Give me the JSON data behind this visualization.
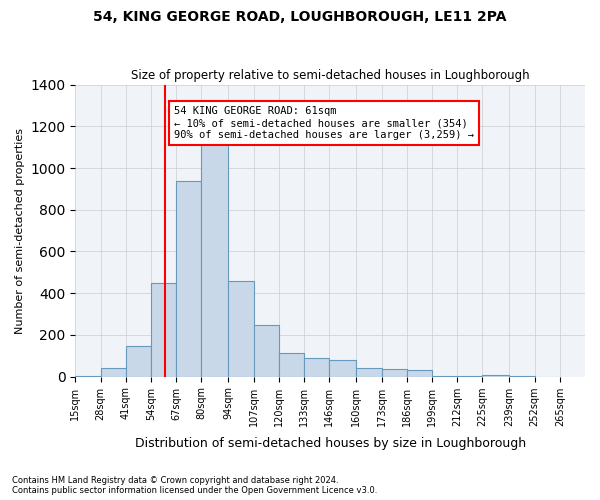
{
  "title1": "54, KING GEORGE ROAD, LOUGHBOROUGH, LE11 2PA",
  "title2": "Size of property relative to semi-detached houses in Loughborough",
  "xlabel": "Distribution of semi-detached houses by size in Loughborough",
  "ylabel": "Number of semi-detached properties",
  "footnote": "Contains HM Land Registry data © Crown copyright and database right 2024.\nContains public sector information licensed under the Open Government Licence v3.0.",
  "bar_color": "#c8d8e8",
  "bar_edge_color": "#6699bb",
  "grid_color": "#cccccc",
  "background_color": "#f0f4f8",
  "red_line_x": 61,
  "annotation_title": "54 KING GEORGE ROAD: 61sqm",
  "annotation_line1": "← 10% of semi-detached houses are smaller (354)",
  "annotation_line2": "90% of semi-detached houses are larger (3,259) →",
  "bin_edges": [
    15,
    28,
    41,
    54,
    67,
    80,
    94,
    107,
    120,
    133,
    146,
    160,
    173,
    186,
    199,
    212,
    225,
    239,
    252,
    265
  ],
  "bin_labels": [
    "15sqm",
    "28sqm",
    "41sqm",
    "54sqm",
    "67sqm",
    "80sqm",
    "94sqm",
    "107sqm",
    "120sqm",
    "133sqm",
    "146sqm",
    "160sqm",
    "173sqm",
    "186sqm",
    "199sqm",
    "212sqm",
    "225sqm",
    "239sqm",
    "252sqm",
    "265sqm"
  ],
  "bar_heights": [
    5,
    40,
    145,
    450,
    940,
    1120,
    460,
    250,
    115,
    90,
    80,
    40,
    35,
    30,
    5,
    5,
    10,
    5,
    0,
    2
  ],
  "ylim": [
    0,
    1400
  ],
  "xlim": [
    15,
    265
  ]
}
